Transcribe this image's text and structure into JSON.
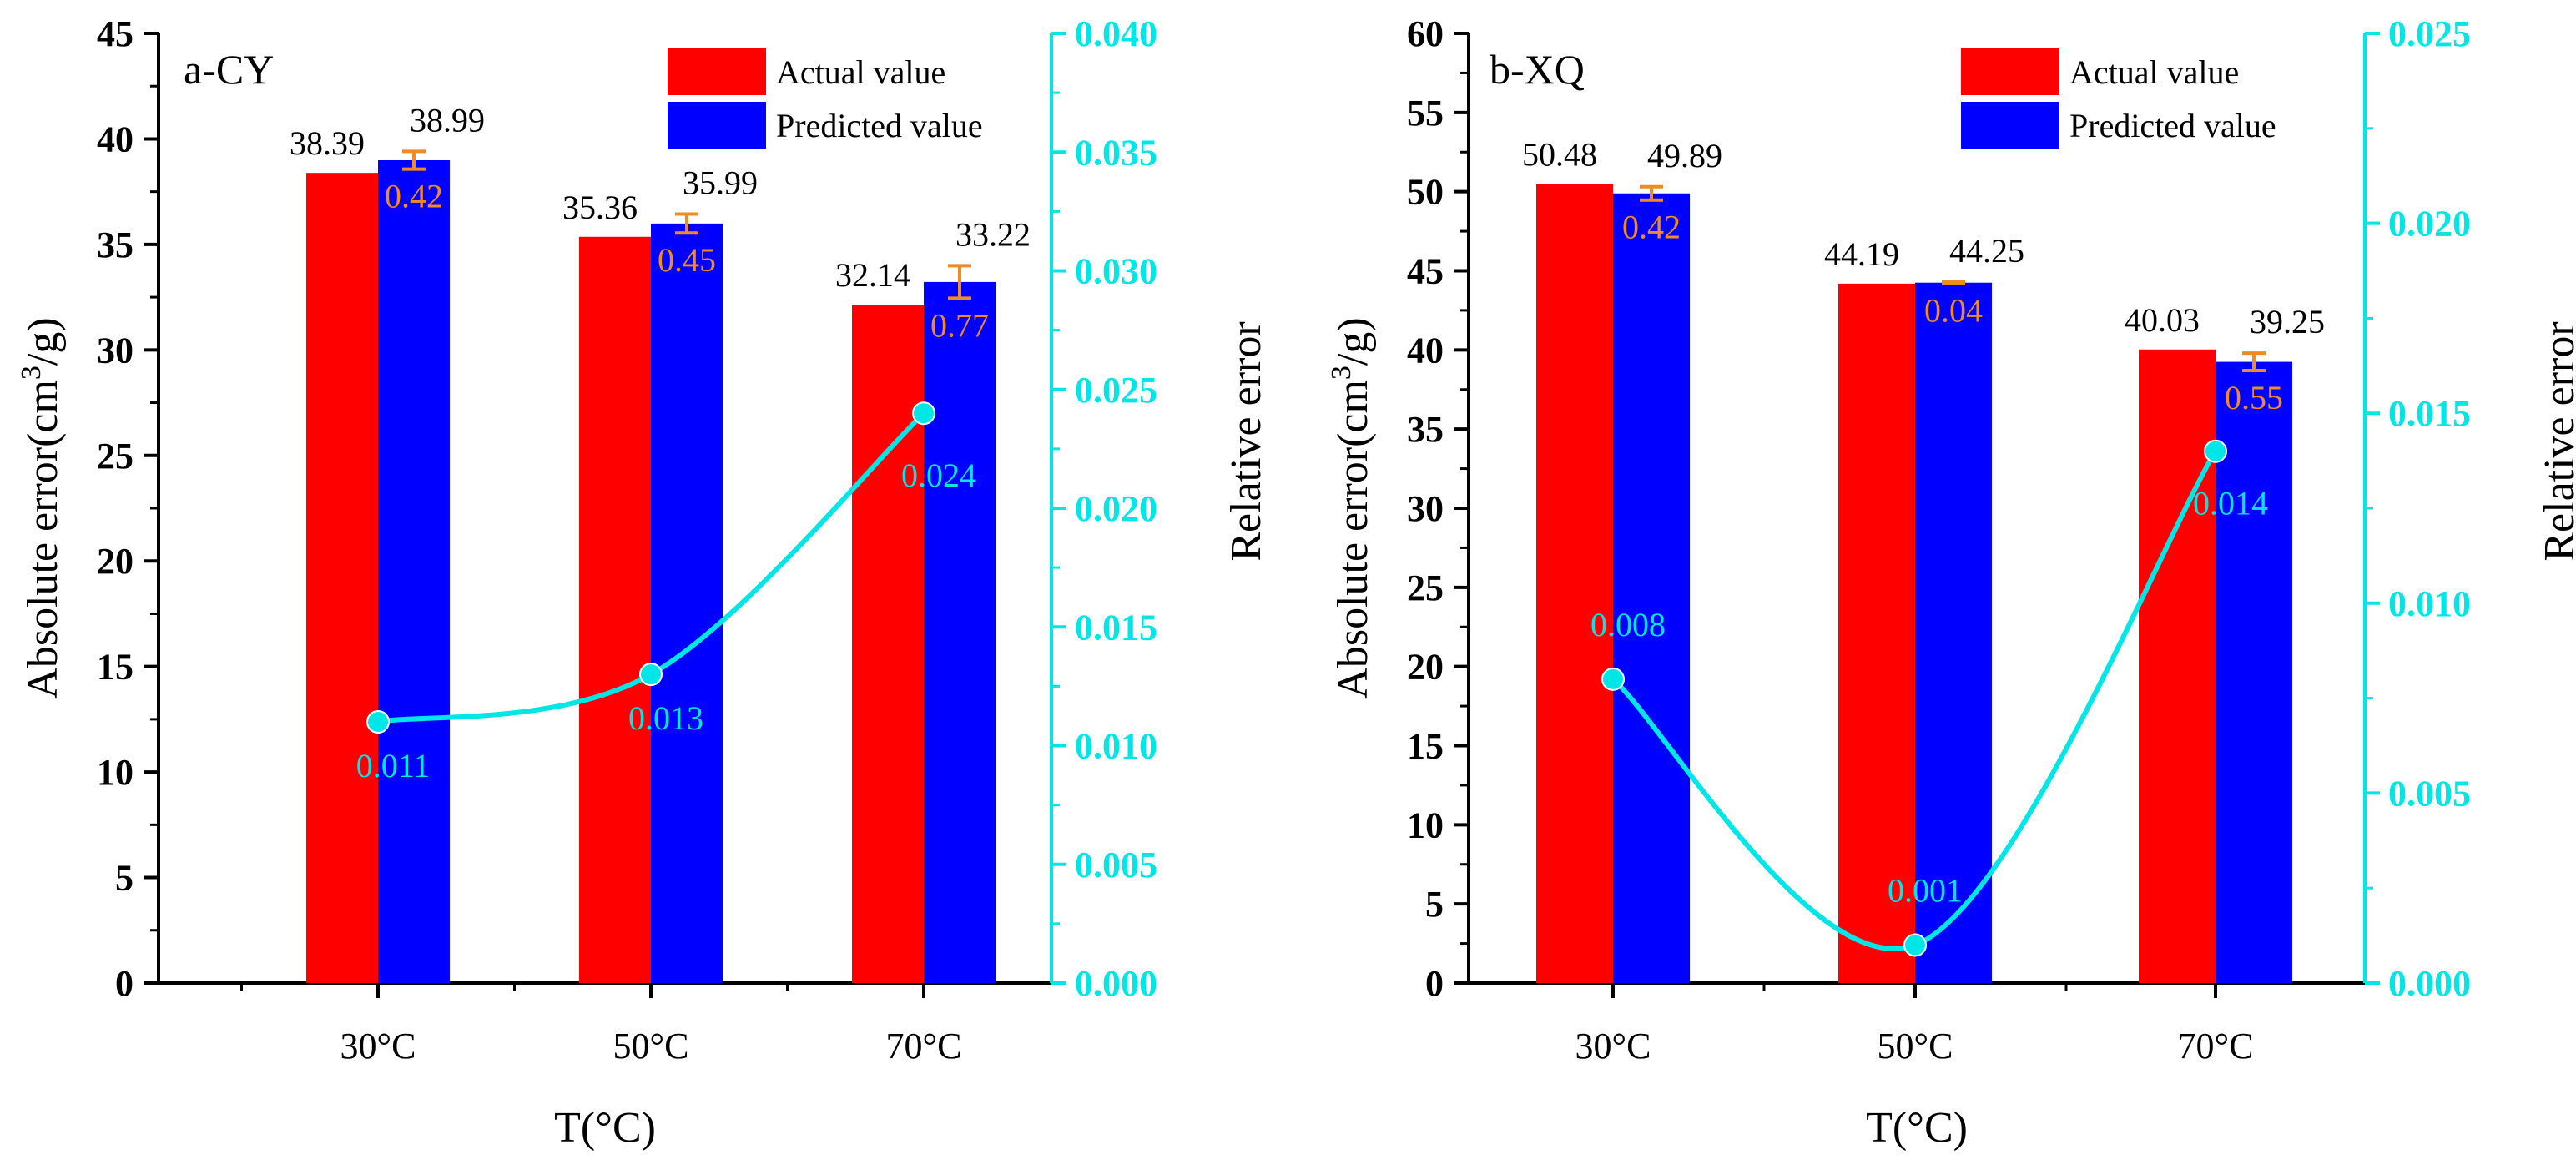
{
  "colors": {
    "actual": "#ff0000",
    "predicted": "#0000ff",
    "relative": "#00e5e5",
    "error_bar": "#f08a24"
  },
  "chart_data": [
    {
      "id": "a",
      "type": "bar",
      "panel_label": "a-CY",
      "categories": [
        "30°C",
        "50°C",
        "70°C"
      ],
      "xlabel": "T(°C)",
      "ylabel_prefix": "Absolute error(cm",
      "ylabel_sup": "3",
      "ylabel_suffix": "/g)",
      "ylabel_right": "Relative error",
      "ylim": [
        0,
        45
      ],
      "yticks": [
        "0",
        "5",
        "10",
        "15",
        "20",
        "25",
        "30",
        "35",
        "40",
        "45"
      ],
      "ylim_right": [
        0,
        0.04
      ],
      "yticks_right": [
        "0.000",
        "0.005",
        "0.010",
        "0.015",
        "0.020",
        "0.025",
        "0.030",
        "0.035",
        "0.040"
      ],
      "legend": [
        "Actual value",
        "Predicted value"
      ],
      "series": [
        {
          "name": "Actual value",
          "values": [
            38.39,
            35.36,
            32.14
          ],
          "labels": [
            "38.39",
            "35.36",
            "32.14"
          ]
        },
        {
          "name": "Predicted value",
          "values": [
            38.99,
            35.99,
            33.22
          ],
          "labels": [
            "38.99",
            "35.99",
            "33.22"
          ],
          "errors": [
            0.42,
            0.45,
            0.77
          ],
          "error_labels": [
            "0.42",
            "0.45",
            "0.77"
          ]
        }
      ],
      "relative_error": {
        "name": "Relative error",
        "values": [
          0.011,
          0.013,
          0.024
        ],
        "labels": [
          "0.011",
          "0.013",
          "0.024"
        ]
      }
    },
    {
      "id": "b",
      "type": "bar",
      "panel_label": "b-XQ",
      "categories": [
        "30°C",
        "50°C",
        "70°C"
      ],
      "xlabel": "T(°C)",
      "ylabel_prefix": "Absolute error(cm",
      "ylabel_sup": "3",
      "ylabel_suffix": "/g)",
      "ylabel_right": "Relative error",
      "ylim": [
        0,
        60
      ],
      "yticks": [
        "0",
        "5",
        "10",
        "15",
        "20",
        "25",
        "30",
        "35",
        "40",
        "45",
        "50",
        "55",
        "60"
      ],
      "ylim_right": [
        0,
        0.025
      ],
      "yticks_right": [
        "0.000",
        "0.005",
        "0.010",
        "0.015",
        "0.020",
        "0.025"
      ],
      "legend": [
        "Actual value",
        "Predicted value"
      ],
      "series": [
        {
          "name": "Actual value",
          "values": [
            50.48,
            44.19,
            40.03
          ],
          "labels": [
            "50.48",
            "44.19",
            "40.03"
          ]
        },
        {
          "name": "Predicted value",
          "values": [
            49.89,
            44.25,
            39.25
          ],
          "labels": [
            "49.89",
            "44.25",
            "39.25"
          ],
          "errors": [
            0.42,
            0.04,
            0.55
          ],
          "error_labels": [
            "0.42",
            "0.04",
            "0.55"
          ]
        }
      ],
      "relative_error": {
        "name": "Relative error",
        "values": [
          0.008,
          0.001,
          0.014
        ],
        "labels": [
          "0.008",
          "0.001",
          "0.014"
        ]
      }
    }
  ]
}
